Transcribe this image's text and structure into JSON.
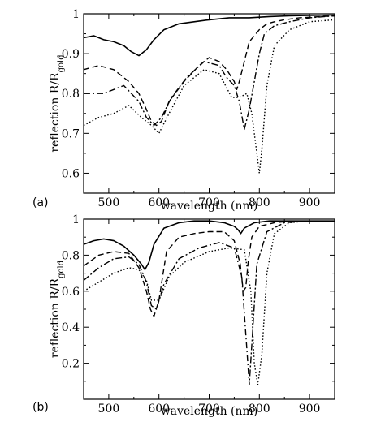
{
  "chart_data": [
    {
      "panel_label": "(a)",
      "type": "line",
      "xlabel": "wavelength (nm)",
      "ylabel": "reflection R/R",
      "ylabel_sub": "gold",
      "xlim": [
        450,
        950
      ],
      "ylim": [
        0.55,
        1.0
      ],
      "xticks": [
        500,
        600,
        700,
        800,
        900
      ],
      "yticks": [
        0.6,
        0.7,
        0.8,
        0.9,
        1
      ],
      "yticklabels": [
        "0.6",
        "0.7",
        "0.8",
        "0.9",
        "1"
      ],
      "series": [
        {
          "style": "solid",
          "x": [
            450,
            470,
            490,
            510,
            530,
            545,
            560,
            575,
            590,
            610,
            640,
            670,
            700,
            740,
            780,
            820,
            860,
            900,
            950
          ],
          "y": [
            0.94,
            0.945,
            0.935,
            0.93,
            0.92,
            0.905,
            0.895,
            0.91,
            0.935,
            0.96,
            0.975,
            0.98,
            0.985,
            0.99,
            0.99,
            0.993,
            0.995,
            0.996,
            0.997
          ]
        },
        {
          "style": "dashed",
          "x": [
            450,
            480,
            510,
            540,
            560,
            575,
            585,
            595,
            605,
            620,
            650,
            680,
            700,
            720,
            735,
            750,
            755,
            760,
            770,
            780,
            800,
            815,
            830,
            850,
            880,
            950
          ],
          "y": [
            0.86,
            0.87,
            0.86,
            0.83,
            0.8,
            0.76,
            0.73,
            0.72,
            0.73,
            0.78,
            0.83,
            0.87,
            0.89,
            0.88,
            0.86,
            0.83,
            0.81,
            0.83,
            0.88,
            0.93,
            0.96,
            0.975,
            0.98,
            0.985,
            0.99,
            0.995
          ]
        },
        {
          "style": "dashdot",
          "x": [
            450,
            490,
            530,
            560,
            575,
            590,
            605,
            625,
            655,
            690,
            720,
            735,
            750,
            760,
            770,
            780,
            790,
            800,
            810,
            830,
            860,
            900,
            950
          ],
          "y": [
            0.8,
            0.8,
            0.82,
            0.78,
            0.74,
            0.72,
            0.74,
            0.79,
            0.84,
            0.88,
            0.87,
            0.84,
            0.82,
            0.78,
            0.71,
            0.76,
            0.83,
            0.9,
            0.95,
            0.97,
            0.98,
            0.99,
            0.995
          ]
        },
        {
          "style": "dotted",
          "x": [
            450,
            480,
            510,
            540,
            565,
            585,
            600,
            620,
            650,
            690,
            720,
            745,
            760,
            775,
            785,
            795,
            800,
            805,
            815,
            830,
            860,
            900,
            950
          ],
          "y": [
            0.72,
            0.74,
            0.75,
            0.77,
            0.74,
            0.72,
            0.7,
            0.75,
            0.82,
            0.86,
            0.85,
            0.79,
            0.79,
            0.8,
            0.75,
            0.65,
            0.6,
            0.66,
            0.82,
            0.92,
            0.96,
            0.98,
            0.985
          ]
        }
      ]
    },
    {
      "panel_label": "(b)",
      "type": "line",
      "xlabel": "wavelength (nm)",
      "ylabel": "reflection R/R",
      "ylabel_sub": "gold",
      "xlim": [
        450,
        950
      ],
      "ylim": [
        0.0,
        1.0
      ],
      "xticks": [
        500,
        600,
        700,
        800,
        900
      ],
      "yticks": [
        0.2,
        0.4,
        0.6,
        0.8,
        1
      ],
      "yticklabels": [
        "0.2",
        "0.4",
        "0.6",
        "0.8",
        "1"
      ],
      "series": [
        {
          "style": "solid",
          "x": [
            450,
            470,
            490,
            510,
            530,
            550,
            565,
            572,
            580,
            590,
            610,
            640,
            670,
            700,
            730,
            750,
            758,
            763,
            770,
            790,
            820,
            860,
            900,
            950
          ],
          "y": [
            0.86,
            0.88,
            0.89,
            0.88,
            0.85,
            0.8,
            0.75,
            0.72,
            0.76,
            0.86,
            0.95,
            0.98,
            0.99,
            0.99,
            0.98,
            0.96,
            0.94,
            0.92,
            0.95,
            0.98,
            0.99,
            0.99,
            0.99,
            0.99
          ]
        },
        {
          "style": "dashed",
          "x": [
            450,
            480,
            510,
            540,
            560,
            575,
            583,
            590,
            600,
            615,
            640,
            670,
            700,
            730,
            750,
            762,
            768,
            773,
            778,
            785,
            800,
            830,
            870,
            950
          ],
          "y": [
            0.74,
            0.8,
            0.82,
            0.81,
            0.73,
            0.6,
            0.5,
            0.46,
            0.55,
            0.82,
            0.9,
            0.92,
            0.93,
            0.93,
            0.88,
            0.75,
            0.6,
            0.62,
            0.77,
            0.9,
            0.96,
            0.98,
            0.99,
            0.99
          ]
        },
        {
          "style": "dashdot",
          "x": [
            450,
            480,
            510,
            540,
            560,
            575,
            585,
            595,
            610,
            640,
            680,
            720,
            750,
            765,
            775,
            780,
            785,
            795,
            815,
            850,
            900,
            950
          ],
          "y": [
            0.66,
            0.73,
            0.78,
            0.79,
            0.75,
            0.65,
            0.52,
            0.5,
            0.64,
            0.78,
            0.84,
            0.87,
            0.84,
            0.68,
            0.28,
            0.08,
            0.3,
            0.75,
            0.93,
            0.98,
            0.99,
            0.99
          ]
        },
        {
          "style": "dotted",
          "x": [
            450,
            480,
            510,
            540,
            560,
            575,
            585,
            600,
            620,
            650,
            700,
            740,
            770,
            783,
            790,
            797,
            805,
            815,
            830,
            860,
            900,
            950
          ],
          "y": [
            0.6,
            0.65,
            0.7,
            0.73,
            0.72,
            0.66,
            0.55,
            0.55,
            0.68,
            0.76,
            0.82,
            0.84,
            0.83,
            0.6,
            0.2,
            0.08,
            0.25,
            0.7,
            0.92,
            0.98,
            0.99,
            0.99
          ]
        }
      ]
    }
  ]
}
